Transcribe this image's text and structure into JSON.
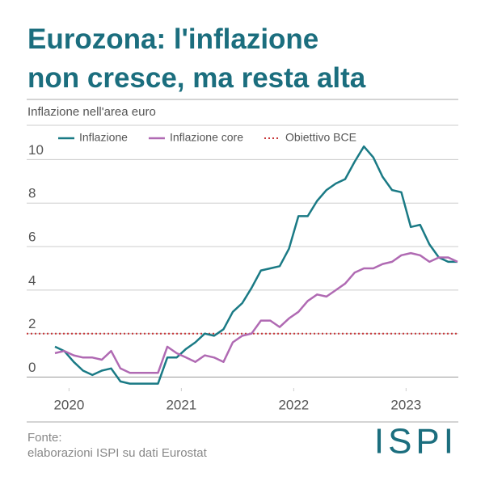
{
  "chart_data": {
    "type": "line",
    "title": "Eurozona: l'inflazione non cresce, ma resta alta",
    "subtitle": "Inflazione nell'area euro",
    "source": "Fonte:",
    "source_detail": "elaborazioni ISPI su dati Eurostat",
    "logo": "ISPI",
    "x": [
      2019.875,
      2019.958,
      2020.042,
      2020.125,
      2020.208,
      2020.292,
      2020.375,
      2020.458,
      2020.542,
      2020.625,
      2020.708,
      2020.792,
      2020.875,
      2020.958,
      2021.042,
      2021.125,
      2021.208,
      2021.292,
      2021.375,
      2021.458,
      2021.542,
      2021.625,
      2021.708,
      2021.792,
      2021.875,
      2021.958,
      2022.042,
      2022.125,
      2022.208,
      2022.292,
      2022.375,
      2022.458,
      2022.542,
      2022.625,
      2022.708,
      2022.792,
      2022.875,
      2022.958,
      2023.042,
      2023.125,
      2023.208,
      2023.292,
      2023.375,
      2023.458
    ],
    "series": [
      {
        "name": "Inflazione",
        "color": "#1a7a85",
        "values": [
          1.4,
          1.2,
          0.7,
          0.3,
          0.1,
          0.3,
          0.4,
          -0.2,
          -0.3,
          -0.3,
          -0.3,
          -0.3,
          0.9,
          0.9,
          1.3,
          1.6,
          2.0,
          1.9,
          2.2,
          3.0,
          3.4,
          4.1,
          4.9,
          5.0,
          5.1,
          5.9,
          7.4,
          7.4,
          8.1,
          8.6,
          8.9,
          9.1,
          9.9,
          10.6,
          10.1,
          9.2,
          8.6,
          8.5,
          6.9,
          7.0,
          6.1,
          5.5,
          5.3,
          5.3
        ]
      },
      {
        "name": "Inflazione core",
        "color": "#b06ab3",
        "values": [
          1.1,
          1.2,
          1.0,
          0.9,
          0.9,
          0.8,
          1.2,
          0.4,
          0.2,
          0.2,
          0.2,
          0.2,
          1.4,
          1.1,
          0.9,
          0.7,
          1.0,
          0.9,
          0.7,
          1.6,
          1.9,
          2.0,
          2.6,
          2.6,
          2.3,
          2.7,
          3.0,
          3.5,
          3.8,
          3.7,
          4.0,
          4.3,
          4.8,
          5.0,
          5.0,
          5.2,
          5.3,
          5.6,
          5.7,
          5.6,
          5.3,
          5.5,
          5.5,
          5.3
        ]
      }
    ],
    "reference_lines": [
      {
        "name": "Obiettivo BCE",
        "value": 2,
        "color": "#c8383a"
      }
    ],
    "xlim": [
      2019.875,
      2023.458
    ],
    "xticks": [
      2020,
      2021,
      2022,
      2023
    ],
    "ylim": [
      -0.5,
      11.5
    ],
    "yticks": [
      0,
      2,
      4,
      6,
      8,
      10
    ],
    "grid": true
  }
}
